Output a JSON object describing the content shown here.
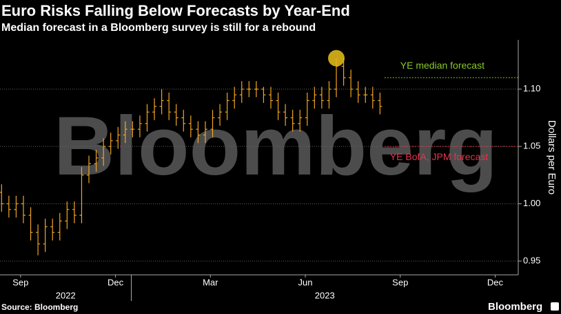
{
  "chart_data": {
    "type": "ohlc",
    "title": "Euro Risks Falling Below Forecasts by Year-End",
    "subtitle": "Median forecast in a Bloomberg survey is still for a rebound",
    "y_label": "Dollars per Euro",
    "watermark": "Bloomberg",
    "source": "Source: Bloomberg",
    "logo": "Bloomberg",
    "color": "#f5a623",
    "x": [
      -0.1,
      0.13,
      0.36,
      0.59,
      0.82,
      1.05,
      1.28,
      1.51,
      1.74,
      1.97,
      2.2,
      2.43,
      2.66,
      2.89,
      3.12,
      3.35,
      3.58,
      3.81,
      4.04,
      4.27,
      4.5,
      4.73,
      4.96,
      5.19,
      5.42,
      5.65,
      5.88,
      6.11,
      6.34,
      6.57,
      6.8,
      7.03,
      7.26,
      7.49,
      7.72,
      7.95,
      8.18,
      8.41,
      8.64,
      8.87,
      9.1,
      9.33,
      9.56,
      9.79,
      10.02,
      10.25,
      10.48,
      10.71,
      10.94,
      11.17,
      11.4,
      11.63,
      11.86
    ],
    "series": [
      {
        "open": [
          1.01,
          1.0,
          0.995,
          1.0,
          0.99,
          0.975,
          0.965,
          0.98,
          0.975,
          0.985,
          0.995,
          0.99,
          1.025,
          1.035,
          1.04,
          1.05,
          1.055,
          1.06,
          1.065,
          1.065,
          1.07,
          1.08,
          1.085,
          1.09,
          1.08,
          1.075,
          1.07,
          1.065,
          1.06,
          1.065,
          1.075,
          1.08,
          1.09,
          1.095,
          1.1,
          1.1,
          1.1,
          1.095,
          1.09,
          1.08,
          1.075,
          1.07,
          1.075,
          1.09,
          1.095,
          1.09,
          1.1,
          1.12,
          1.11,
          1.1,
          1.095,
          1.095,
          1.09
        ],
        "high": [
          1.017,
          1.007,
          1.007,
          1.007,
          0.997,
          0.982,
          0.987,
          0.987,
          0.992,
          1.002,
          1.002,
          1.032,
          1.042,
          1.047,
          1.057,
          1.062,
          1.067,
          1.072,
          1.072,
          1.077,
          1.087,
          1.092,
          1.1,
          1.097,
          1.087,
          1.082,
          1.077,
          1.072,
          1.072,
          1.082,
          1.087,
          1.097,
          1.102,
          1.107,
          1.107,
          1.107,
          1.102,
          1.102,
          1.097,
          1.087,
          1.082,
          1.082,
          1.097,
          1.102,
          1.102,
          1.107,
          1.127,
          1.127,
          1.117,
          1.107,
          1.102,
          1.102,
          1.097
        ],
        "low": [
          0.993,
          0.988,
          0.988,
          0.983,
          0.968,
          0.955,
          0.958,
          0.968,
          0.968,
          0.978,
          0.983,
          0.983,
          1.018,
          1.028,
          1.033,
          1.043,
          1.048,
          1.053,
          1.058,
          1.058,
          1.063,
          1.073,
          1.078,
          1.073,
          1.068,
          1.063,
          1.058,
          1.053,
          1.053,
          1.058,
          1.068,
          1.073,
          1.083,
          1.088,
          1.093,
          1.093,
          1.088,
          1.083,
          1.073,
          1.068,
          1.063,
          1.063,
          1.068,
          1.083,
          1.083,
          1.083,
          1.093,
          1.103,
          1.093,
          1.088,
          1.088,
          1.083,
          1.078
        ],
        "close": [
          1.0,
          0.995,
          1.0,
          0.99,
          0.975,
          0.965,
          0.98,
          0.975,
          0.985,
          0.995,
          0.99,
          1.025,
          1.035,
          1.04,
          1.05,
          1.055,
          1.06,
          1.065,
          1.065,
          1.07,
          1.08,
          1.085,
          1.09,
          1.08,
          1.075,
          1.07,
          1.065,
          1.06,
          1.065,
          1.075,
          1.08,
          1.09,
          1.095,
          1.1,
          1.1,
          1.1,
          1.095,
          1.09,
          1.08,
          1.075,
          1.07,
          1.075,
          1.09,
          1.095,
          1.09,
          1.1,
          1.12,
          1.11,
          1.1,
          1.095,
          1.095,
          1.09,
          1.085
        ]
      }
    ],
    "highlight_index": 46,
    "highlight_color": "#e8c21a",
    "xlim": [
      -0.15,
      16.23
    ],
    "xticks": [
      {
        "value": 0.5,
        "label": "Sep"
      },
      {
        "value": 3.5,
        "label": "Dec"
      },
      {
        "value": 6.5,
        "label": "Mar"
      },
      {
        "value": 9.5,
        "label": "Jun"
      },
      {
        "value": 12.5,
        "label": "Sep"
      },
      {
        "value": 15.5,
        "label": "Dec"
      }
    ],
    "x_groups": [
      {
        "label": "2022",
        "start": -0.15,
        "end": 4
      },
      {
        "label": "2023",
        "start": 4,
        "end": 16.23
      }
    ],
    "ylim": [
      0.938,
      1.143
    ],
    "yticks": [
      0.95,
      {
        "value": 1,
        "label": "1.00"
      },
      1.05,
      {
        "value": 1.1,
        "label": "1.10"
      }
    ],
    "grid": true,
    "reference_lines": [
      {
        "value": 1.11,
        "start": 12,
        "label": "YE median forecast",
        "color": "#8ac926",
        "label_position": "above"
      },
      {
        "value": 1.05,
        "start": 12,
        "label": "YE BofA, JPM forecast",
        "color": "#e8334a",
        "label_position": "below"
      }
    ]
  }
}
